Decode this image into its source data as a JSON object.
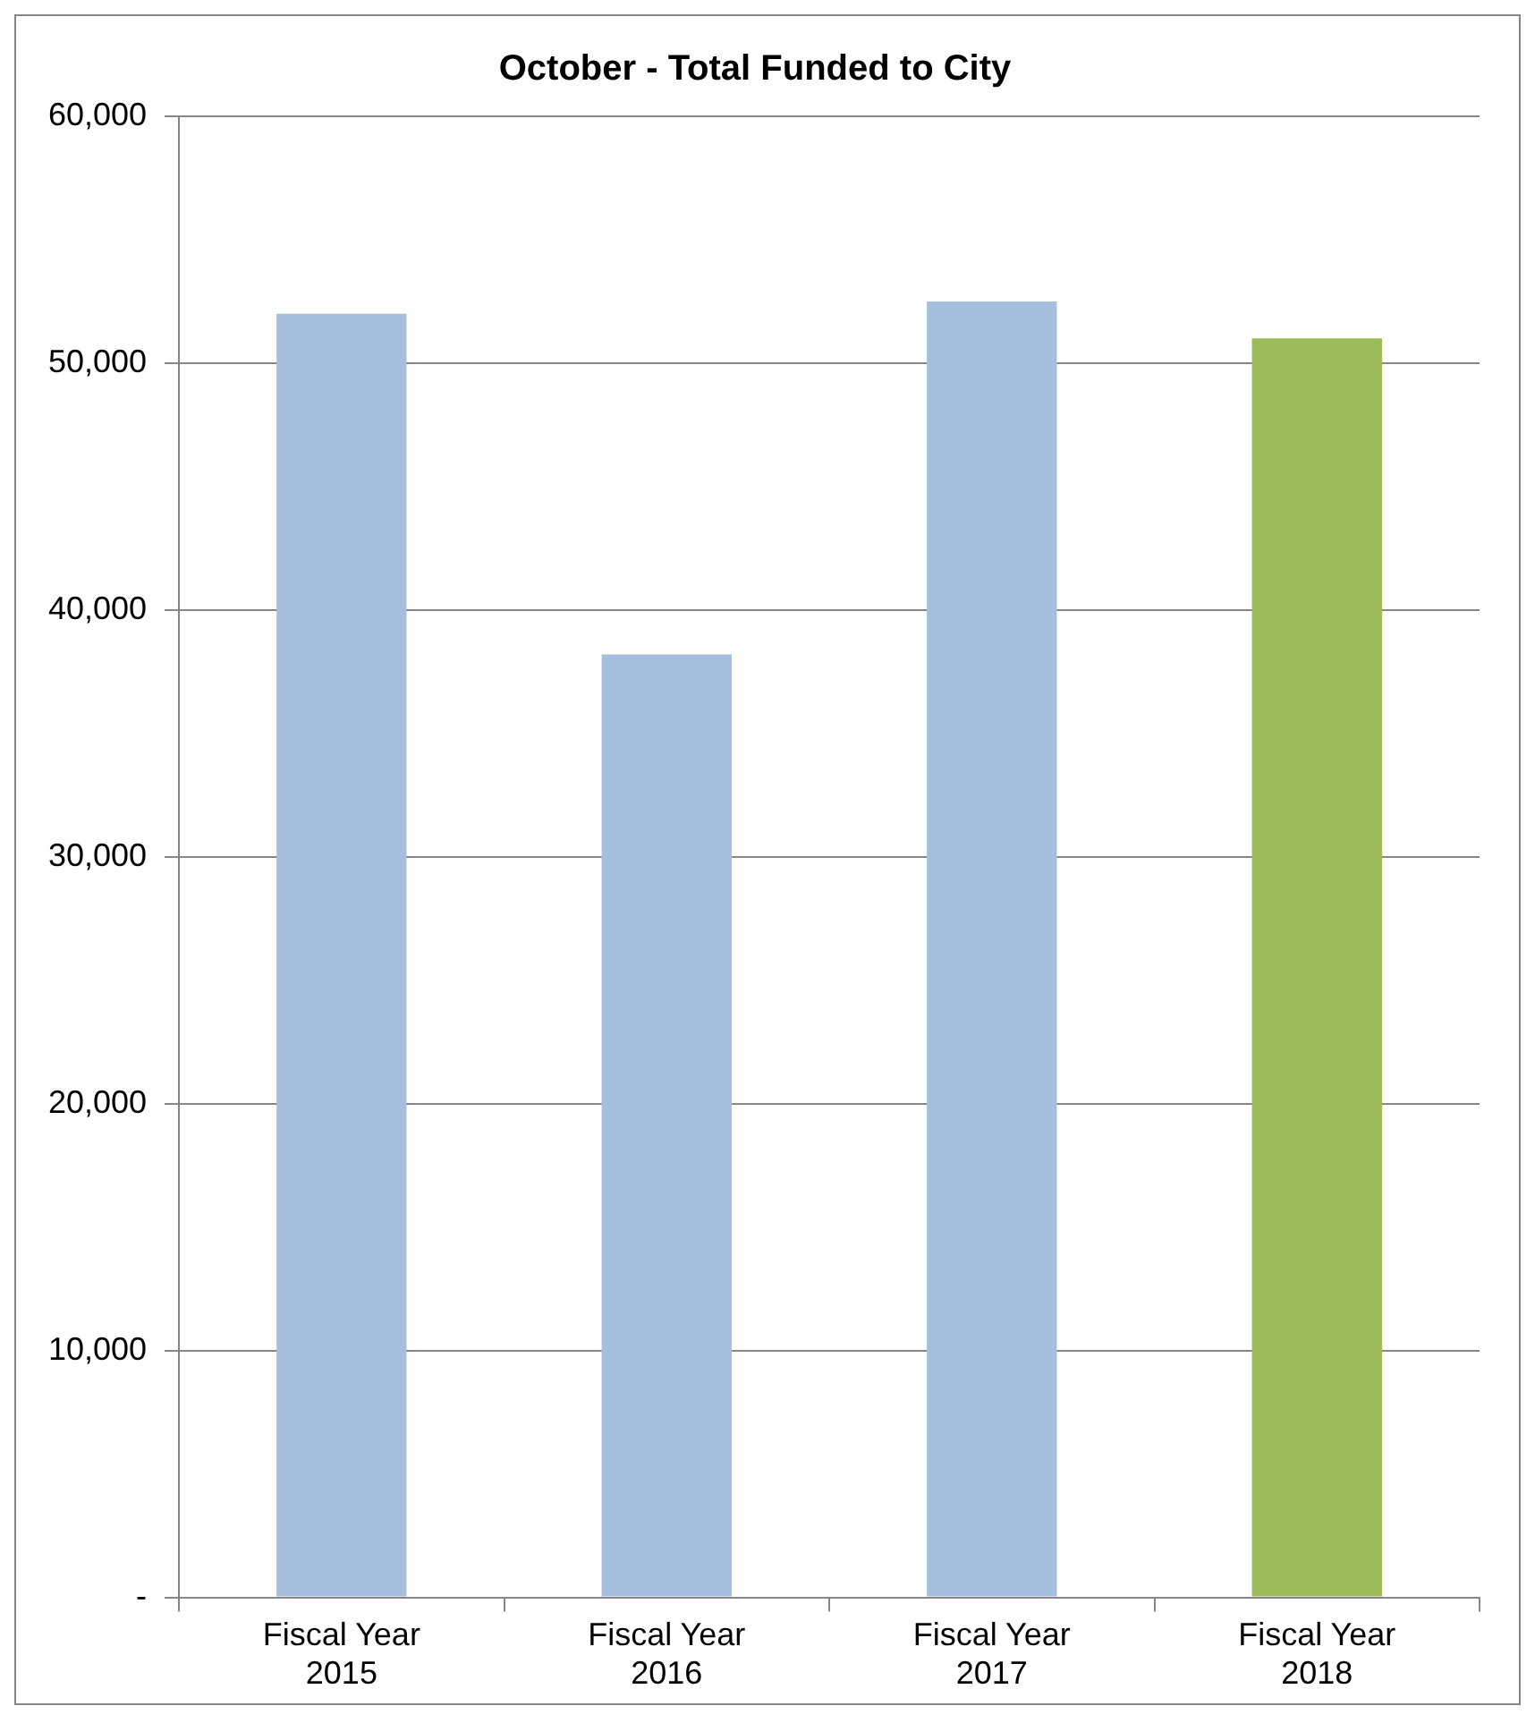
{
  "chart_data": {
    "type": "bar",
    "title": "October - Total Funded to City",
    "categories": [
      "Fiscal Year 2015",
      "Fiscal Year 2016",
      "Fiscal Year 2017",
      "Fiscal Year 2018"
    ],
    "values": [
      52000,
      38200,
      52500,
      51000
    ],
    "colors": [
      "#a7bfde",
      "#a7bfde",
      "#a7bfde",
      "#9bbb59"
    ],
    "ylim": [
      0,
      60000
    ],
    "yticks": [
      {
        "value": 0,
        "label": "-"
      },
      {
        "value": 10000,
        "label": "10,000"
      },
      {
        "value": 20000,
        "label": "20,000"
      },
      {
        "value": 30000,
        "label": "30,000"
      },
      {
        "value": 40000,
        "label": "40,000"
      },
      {
        "value": 50000,
        "label": "50,000"
      },
      {
        "value": 60000,
        "label": "60,000"
      }
    ],
    "grid": "y",
    "legend": false
  }
}
